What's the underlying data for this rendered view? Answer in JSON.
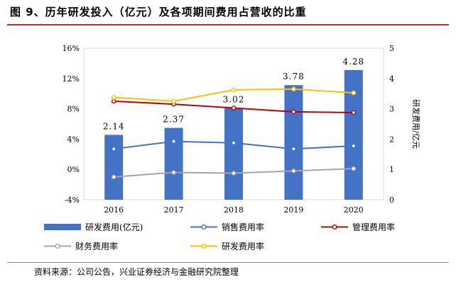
{
  "header": {
    "title": "图 9、历年研发投入（亿元）及各项期间费用占营收的比重"
  },
  "footer": {
    "source": "资料来源：公司公告，兴业证券经济与金融研究院整理"
  },
  "colors": {
    "bar": "#4472c4",
    "sales_rate": "#4472c4",
    "mgmt_rate": "#c00000",
    "fin_rate": "#a5a5a5",
    "rd_rate": "#ffc000",
    "title_rule": "#b8322a"
  },
  "chart_data": {
    "type": "bar",
    "categories": [
      "2016",
      "2017",
      "2018",
      "2019",
      "2020"
    ],
    "left_axis": {
      "ylim": [
        -4,
        16
      ],
      "ticks": [
        "-4%",
        "0%",
        "4%",
        "8%",
        "12%",
        "16%"
      ],
      "tick_values": [
        -4,
        0,
        4,
        8,
        12,
        16
      ]
    },
    "right_axis": {
      "label": "研发费用/亿元",
      "ylim": [
        0,
        5
      ],
      "ticks": [
        "0",
        "1",
        "2",
        "3",
        "4",
        "5"
      ],
      "tick_values": [
        0,
        1,
        2,
        3,
        4,
        5
      ]
    },
    "bar_series": {
      "name": "研发费用(亿元)",
      "axis": "right",
      "values": [
        2.14,
        2.37,
        3.02,
        3.78,
        4.28
      ],
      "labels": [
        "2.14",
        "2.37",
        "3.02",
        "3.78",
        "4.28"
      ]
    },
    "line_series": [
      {
        "name": "销售费用率",
        "axis": "left",
        "values": [
          2.7,
          3.7,
          3.5,
          2.7,
          3.1
        ]
      },
      {
        "name": "管理费用率",
        "axis": "left",
        "values": [
          9.0,
          8.6,
          8.1,
          7.6,
          7.5
        ]
      },
      {
        "name": "财务费用率",
        "axis": "left",
        "values": [
          -1.0,
          -0.4,
          -0.5,
          -0.2,
          0.1
        ]
      },
      {
        "name": "研发费用率",
        "axis": "left",
        "values": [
          9.5,
          9.0,
          10.5,
          10.6,
          10.1
        ]
      }
    ],
    "legend": [
      {
        "name": "研发费用(亿元)",
        "kind": "bar"
      },
      {
        "name": "销售费用率",
        "kind": "line"
      },
      {
        "name": "管理费用率",
        "kind": "line"
      },
      {
        "name": "财务费用率",
        "kind": "line"
      },
      {
        "name": "研发费用率",
        "kind": "line"
      }
    ],
    "legend_position": "bottom",
    "grid": false
  }
}
